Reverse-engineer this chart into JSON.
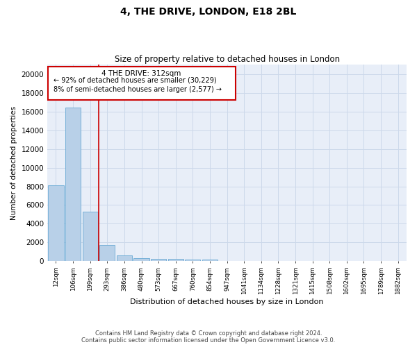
{
  "title1": "4, THE DRIVE, LONDON, E18 2BL",
  "title2": "Size of property relative to detached houses in London",
  "xlabel": "Distribution of detached houses by size in London",
  "ylabel": "Number of detached properties",
  "bar_color": "#b8d0e8",
  "bar_edge_color": "#6aaad4",
  "grid_color": "#ccd8ea",
  "background_color": "#e8eef8",
  "vline_color": "#cc0000",
  "annotation_text_line1": "4 THE DRIVE: 312sqm",
  "annotation_text_line2": "← 92% of detached houses are smaller (30,229)",
  "annotation_text_line3": "8% of semi-detached houses are larger (2,577) →",
  "footer_line1": "Contains HM Land Registry data © Crown copyright and database right 2024.",
  "footer_line2": "Contains public sector information licensed under the Open Government Licence v3.0.",
  "categories": [
    "12sqm",
    "106sqm",
    "199sqm",
    "293sqm",
    "386sqm",
    "480sqm",
    "573sqm",
    "667sqm",
    "760sqm",
    "854sqm",
    "947sqm",
    "1041sqm",
    "1134sqm",
    "1228sqm",
    "1321sqm",
    "1415sqm",
    "1508sqm",
    "1602sqm",
    "1695sqm",
    "1789sqm",
    "1882sqm"
  ],
  "values": [
    8100,
    16400,
    5300,
    1750,
    650,
    350,
    280,
    220,
    200,
    150,
    0,
    0,
    0,
    0,
    0,
    0,
    0,
    0,
    0,
    0,
    0
  ],
  "ylim": [
    0,
    21000
  ],
  "yticks": [
    0,
    2000,
    4000,
    6000,
    8000,
    10000,
    12000,
    14000,
    16000,
    18000,
    20000
  ]
}
